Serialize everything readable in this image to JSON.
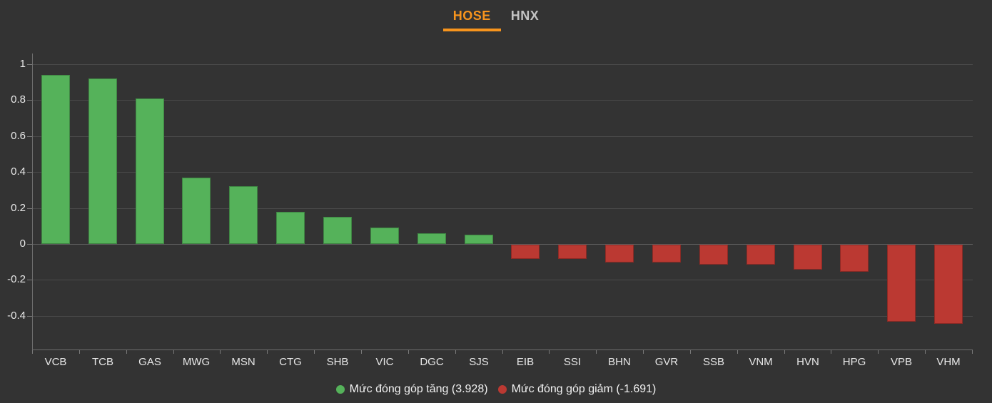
{
  "tabs": [
    {
      "label": "HOSE",
      "active": true
    },
    {
      "label": "HNX",
      "active": false
    }
  ],
  "colors": {
    "background": "#333333",
    "positive": "#55b25a",
    "negative": "#bb3932",
    "accent": "#f7941d",
    "tab_inactive": "#c4c4c4",
    "axis_text": "#e8e8e8",
    "gridline": "#4a4a4a",
    "zero_line": "#616161",
    "axis_line": "#6e6e6e",
    "tick": "#7a7a7a"
  },
  "legend": [
    {
      "label": "Mức đóng góp tăng (3.928)",
      "color": "#55b25a"
    },
    {
      "label": "Mức đóng góp giảm (-1.691)",
      "color": "#bb3932"
    }
  ],
  "chart_data": {
    "type": "bar",
    "title": "",
    "xlabel": "",
    "ylabel": "",
    "categories": [
      "VCB",
      "TCB",
      "GAS",
      "MWG",
      "MSN",
      "CTG",
      "SHB",
      "VIC",
      "DGC",
      "SJS",
      "EIB",
      "SSI",
      "BHN",
      "GVR",
      "SSB",
      "VNM",
      "HVN",
      "HPG",
      "VPB",
      "VHM"
    ],
    "values": [
      0.94,
      0.92,
      0.81,
      0.37,
      0.32,
      0.18,
      0.15,
      0.09,
      0.06,
      0.05,
      -0.08,
      -0.08,
      -0.1,
      -0.1,
      -0.11,
      -0.11,
      -0.14,
      -0.15,
      -0.43,
      -0.44
    ],
    "yticks": [
      1,
      0.8,
      0.6,
      0.4,
      0.2,
      0,
      -0.2,
      -0.4
    ],
    "ytick_labels": [
      "1",
      "0.8",
      "0.6",
      "0.4",
      "0.2",
      "0",
      "-0.2",
      "-0.4"
    ],
    "ylim": [
      -0.59,
      1.06
    ],
    "grid": true,
    "legend_position": "bottom",
    "series_colors": {
      "positive": "#55b25a",
      "negative": "#bb3932"
    }
  }
}
